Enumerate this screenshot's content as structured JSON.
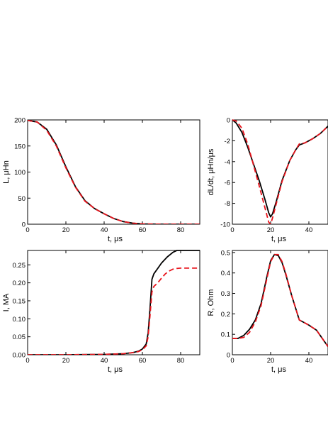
{
  "chart_data": [
    {
      "type": "line",
      "xlabel": "t, μs",
      "ylabel": "L, μHn",
      "xlim": [
        0,
        90
      ],
      "ylim": [
        0,
        200
      ],
      "xticks": [
        0,
        20,
        40,
        60,
        80
      ],
      "yticks": [
        0,
        50,
        100,
        150,
        200
      ],
      "ytick_labels": [
        "0",
        "50",
        "100",
        "150",
        "200"
      ],
      "grid": false,
      "series": [
        {
          "color": "#000000",
          "style": "solid",
          "x": [
            0,
            5,
            10,
            15,
            20,
            25,
            30,
            35,
            40,
            45,
            50,
            55,
            60,
            70,
            80,
            90
          ],
          "y": [
            199,
            196,
            182,
            152,
            110,
            72,
            45,
            30,
            20,
            11,
            5,
            2,
            0.5,
            0,
            0,
            0
          ]
        },
        {
          "color": "#e8141c",
          "style": "dashed",
          "x": [
            0,
            5,
            10,
            15,
            20,
            25,
            30,
            35,
            40,
            45,
            50,
            55,
            60,
            70,
            80,
            90
          ],
          "y": [
            199,
            196,
            180,
            150,
            108,
            71,
            44,
            30,
            20,
            11,
            5,
            2,
            0.5,
            0,
            0,
            0
          ]
        }
      ]
    },
    {
      "type": "line",
      "xlabel": "t, μs",
      "ylabel": "dL/dt, μHn/μs",
      "xlim": [
        0,
        50
      ],
      "ylim": [
        -10,
        0
      ],
      "xticks": [
        0,
        20,
        40
      ],
      "yticks": [
        0,
        -2,
        -4,
        -6,
        -8,
        -10
      ],
      "ytick_labels": [
        "0",
        "-2",
        "-4",
        "-6",
        "-8",
        "-10"
      ],
      "grid": false,
      "series": [
        {
          "color": "#000000",
          "style": "solid",
          "x": [
            0,
            2,
            5,
            8,
            11,
            14,
            17,
            19,
            20,
            21,
            23,
            26,
            30,
            33,
            35,
            38,
            42,
            46,
            50
          ],
          "y": [
            0,
            -0.3,
            -1.2,
            -2.6,
            -4.2,
            -5.8,
            -7.6,
            -8.9,
            -9.3,
            -9.0,
            -7.8,
            -5.8,
            -3.9,
            -2.9,
            -2.4,
            -2.2,
            -1.8,
            -1.3,
            -0.6
          ]
        },
        {
          "color": "#e8141c",
          "style": "dashed",
          "x": [
            0,
            2,
            5,
            8,
            11,
            14,
            17,
            19,
            20,
            21,
            23,
            26,
            30,
            33,
            35,
            38,
            42,
            46,
            50
          ],
          "y": [
            0,
            -0.1,
            -0.8,
            -2.3,
            -4.3,
            -6.3,
            -8.4,
            -9.8,
            -10.0,
            -9.4,
            -8.0,
            -5.9,
            -3.9,
            -2.9,
            -2.3,
            -2.2,
            -1.8,
            -1.3,
            -0.6
          ]
        }
      ]
    },
    {
      "type": "line",
      "xlabel": "t, μs",
      "ylabel": "I, MA",
      "xlim": [
        0,
        90
      ],
      "ylim": [
        0,
        0.29
      ],
      "xticks": [
        0,
        20,
        40,
        60,
        80
      ],
      "yticks": [
        0,
        0.05,
        0.1,
        0.15,
        0.2,
        0.25
      ],
      "ytick_labels": [
        "0.00",
        "0.05",
        "0.10",
        "0.15",
        "0.20",
        "0.25"
      ],
      "grid": false,
      "series": [
        {
          "color": "#000000",
          "style": "solid",
          "x": [
            0,
            20,
            40,
            50,
            55,
            58,
            60,
            62,
            63,
            64,
            65,
            66,
            68,
            70,
            73,
            76,
            78,
            80,
            85,
            90
          ],
          "y": [
            0,
            0,
            0.001,
            0.003,
            0.006,
            0.01,
            0.016,
            0.03,
            0.06,
            0.13,
            0.21,
            0.225,
            0.24,
            0.255,
            0.272,
            0.285,
            0.29,
            0.29,
            0.29,
            0.29
          ]
        },
        {
          "color": "#e8141c",
          "style": "dashed",
          "x": [
            0,
            20,
            40,
            50,
            55,
            58,
            60,
            62,
            63,
            64,
            65,
            66,
            68,
            70,
            72,
            74,
            76,
            78,
            80,
            85,
            90
          ],
          "y": [
            0,
            0,
            0.001,
            0.003,
            0.006,
            0.009,
            0.014,
            0.025,
            0.05,
            0.11,
            0.175,
            0.19,
            0.2,
            0.213,
            0.225,
            0.233,
            0.238,
            0.24,
            0.241,
            0.241,
            0.241
          ]
        }
      ]
    },
    {
      "type": "line",
      "xlabel": "t, μs",
      "ylabel": "R, Ohm",
      "xlim": [
        0,
        50
      ],
      "ylim": [
        0,
        0.51
      ],
      "xticks": [
        0,
        20,
        40
      ],
      "yticks": [
        0,
        0.1,
        0.2,
        0.3,
        0.4,
        0.5
      ],
      "ytick_labels": [
        "0",
        "0.1",
        "0.2",
        "0.3",
        "0.4",
        "0.5"
      ],
      "grid": false,
      "series": [
        {
          "color": "#000000",
          "style": "solid",
          "x": [
            0,
            3,
            6,
            9,
            12,
            15,
            18,
            20,
            22,
            24,
            26,
            28,
            31,
            34,
            35,
            37,
            40,
            44,
            47,
            50
          ],
          "y": [
            0.08,
            0.08,
            0.095,
            0.125,
            0.17,
            0.25,
            0.38,
            0.46,
            0.49,
            0.485,
            0.45,
            0.39,
            0.29,
            0.2,
            0.17,
            0.16,
            0.145,
            0.12,
            0.08,
            0.04
          ]
        },
        {
          "color": "#e8141c",
          "style": "dashed",
          "x": [
            0,
            3,
            6,
            9,
            12,
            15,
            18,
            20,
            22,
            24,
            26,
            28,
            31,
            34,
            35,
            37,
            40,
            44,
            47,
            50
          ],
          "y": [
            0.08,
            0.08,
            0.085,
            0.11,
            0.16,
            0.24,
            0.37,
            0.455,
            0.49,
            0.49,
            0.455,
            0.395,
            0.29,
            0.2,
            0.17,
            0.16,
            0.145,
            0.12,
            0.08,
            0.04
          ]
        }
      ]
    }
  ]
}
